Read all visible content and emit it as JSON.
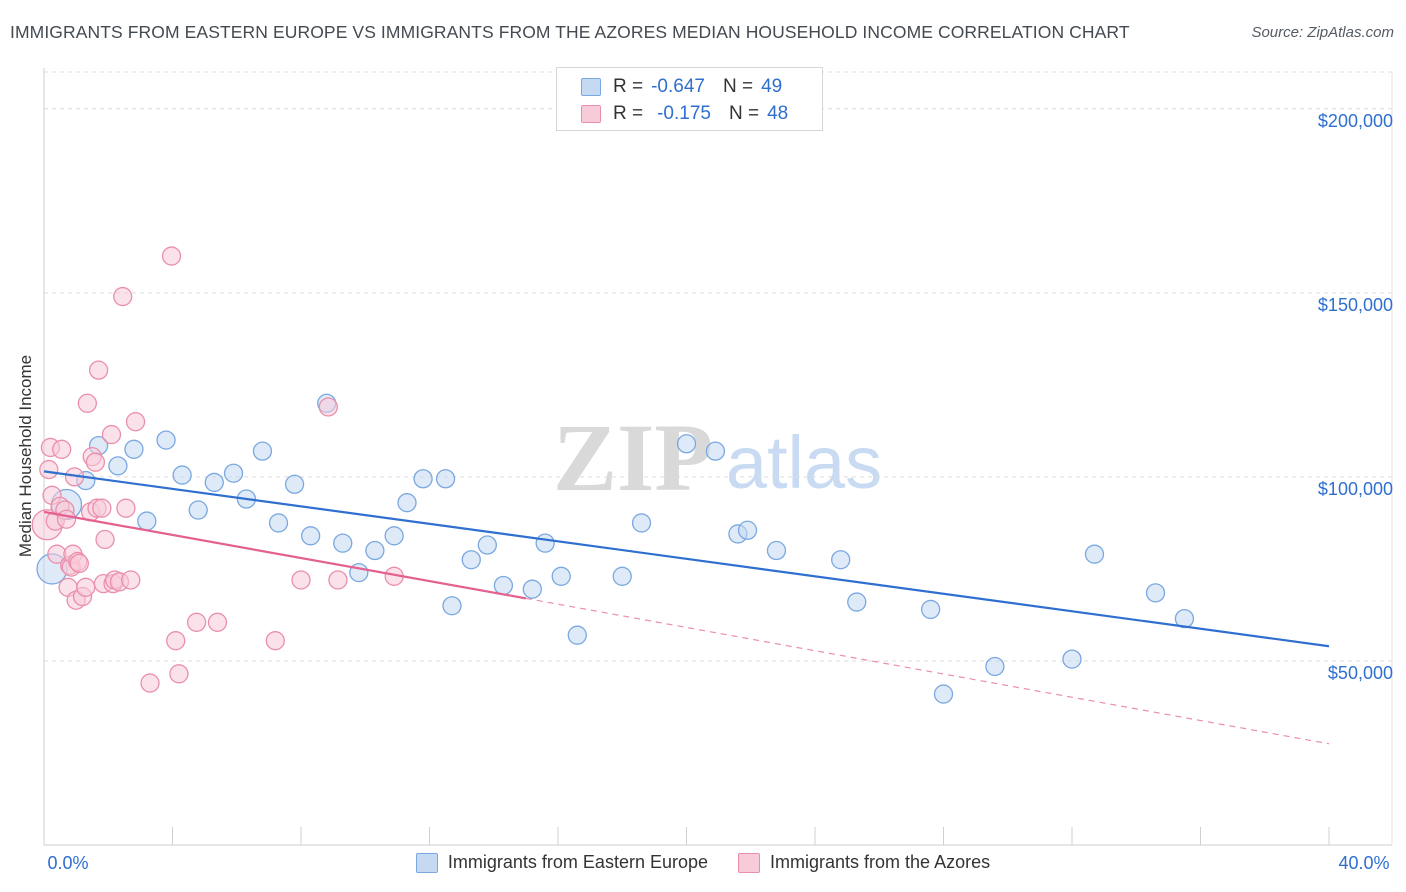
{
  "title": "IMMIGRANTS FROM EASTERN EUROPE VS IMMIGRANTS FROM THE AZORES MEDIAN HOUSEHOLD INCOME CORRELATION CHART",
  "source": "Source: ZipAtlas.com",
  "watermark": {
    "zip": "ZIP",
    "atlas": "atlas"
  },
  "stats": [
    {
      "r_label": "R =",
      "r_value": "-0.647",
      "n_label": "N =",
      "n_value": "49",
      "color": "#7aa8e0",
      "fill": "#c5d9f3"
    },
    {
      "r_label": "R =",
      "r_value": "-0.175",
      "n_label": "N =",
      "n_value": "48",
      "color": "#ea8fab",
      "fill": "#f8cbd9"
    }
  ],
  "legend": [
    {
      "label": "Immigrants from Eastern Europe",
      "color": "#7aa8e0",
      "fill": "#c5d9f3"
    },
    {
      "label": "Immigrants from the Azores",
      "color": "#ea8fab",
      "fill": "#f8cbd9"
    }
  ],
  "chart_data": {
    "type": "scatter",
    "title": "IMMIGRANTS FROM EASTERN EUROPE VS IMMIGRANTS FROM THE AZORES MEDIAN HOUSEHOLD INCOME CORRELATION CHART",
    "xlabel": "",
    "ylabel": "Median Household Income",
    "xlim": [
      0,
      40
    ],
    "ylim": [
      0,
      210000
    ],
    "x_tick_labels": {
      "min": "0.0%",
      "max": "40.0%"
    },
    "y_ticks": [
      {
        "value": 50000,
        "label": "$50,000"
      },
      {
        "value": 100000,
        "label": "$100,000"
      },
      {
        "value": 150000,
        "label": "$150,000"
      },
      {
        "value": 200000,
        "label": "$200,000"
      }
    ],
    "series": [
      {
        "name": "Immigrants from Eastern Europe",
        "color": "#2f6fd0",
        "point_stroke": "#7aa8e0",
        "point_fill": "#c5d9f3",
        "trend": {
          "x0": 0,
          "y0": 101500,
          "x1": 40,
          "y1": 54000,
          "dashed_to": null
        },
        "points": [
          [
            0.25,
            75000,
            "large"
          ],
          [
            0.7,
            92500,
            "large"
          ],
          [
            1.3,
            99000
          ],
          [
            1.7,
            108500
          ],
          [
            2.3,
            103000
          ],
          [
            2.8,
            107500
          ],
          [
            3.2,
            88000
          ],
          [
            3.8,
            110000
          ],
          [
            4.3,
            100500
          ],
          [
            4.8,
            91000
          ],
          [
            5.3,
            98500
          ],
          [
            5.9,
            101000
          ],
          [
            6.3,
            94000
          ],
          [
            6.8,
            107000
          ],
          [
            7.3,
            87500
          ],
          [
            7.8,
            98000
          ],
          [
            8.3,
            84000
          ],
          [
            8.8,
            120000
          ],
          [
            9.3,
            82000
          ],
          [
            9.8,
            74000
          ],
          [
            10.3,
            80000
          ],
          [
            10.9,
            84000
          ],
          [
            11.3,
            93000
          ],
          [
            11.8,
            99500
          ],
          [
            12.5,
            99500
          ],
          [
            12.7,
            65000
          ],
          [
            13.3,
            77500
          ],
          [
            13.8,
            81500
          ],
          [
            14.3,
            70500
          ],
          [
            15.2,
            69500
          ],
          [
            15.6,
            82000
          ],
          [
            16.1,
            73000
          ],
          [
            16.6,
            57000
          ],
          [
            18.0,
            73000
          ],
          [
            18.6,
            87500
          ],
          [
            20.0,
            109000
          ],
          [
            20.9,
            107000
          ],
          [
            21.6,
            84500
          ],
          [
            21.9,
            85500
          ],
          [
            22.8,
            80000
          ],
          [
            24.8,
            77500
          ],
          [
            25.3,
            66000
          ],
          [
            27.6,
            64000
          ],
          [
            28.0,
            41000
          ],
          [
            29.6,
            48500
          ],
          [
            32.0,
            50500
          ],
          [
            32.7,
            79000
          ],
          [
            34.6,
            68500
          ],
          [
            35.5,
            61500
          ]
        ]
      },
      {
        "name": "Immigrants from the Azores",
        "color": "#e4618f",
        "point_stroke": "#ea8fab",
        "point_fill": "#f8cbd9",
        "trend": {
          "x0": 0,
          "y0": 90500,
          "x1": 15,
          "y1": 67000,
          "dashed_to": {
            "x": 40,
            "y": 27500
          }
        },
        "points": [
          [
            0.1,
            87000,
            "large"
          ],
          [
            0.15,
            102000
          ],
          [
            0.2,
            108000
          ],
          [
            0.25,
            95000
          ],
          [
            0.35,
            88000
          ],
          [
            0.4,
            79000
          ],
          [
            0.5,
            92000
          ],
          [
            0.55,
            107500
          ],
          [
            0.65,
            91000
          ],
          [
            0.7,
            88500
          ],
          [
            0.75,
            70000
          ],
          [
            0.8,
            76000
          ],
          [
            0.85,
            75500
          ],
          [
            0.9,
            79000
          ],
          [
            0.95,
            100000
          ],
          [
            1.0,
            66500
          ],
          [
            1.05,
            77000
          ],
          [
            1.1,
            76500
          ],
          [
            1.2,
            67500
          ],
          [
            1.3,
            70000
          ],
          [
            1.35,
            120000
          ],
          [
            1.45,
            90500
          ],
          [
            1.5,
            105500
          ],
          [
            1.6,
            104000
          ],
          [
            1.65,
            91500
          ],
          [
            1.7,
            129000
          ],
          [
            1.8,
            91500
          ],
          [
            1.85,
            71000
          ],
          [
            1.9,
            83000
          ],
          [
            2.1,
            111500
          ],
          [
            2.15,
            71000
          ],
          [
            2.2,
            72000
          ],
          [
            2.35,
            71500
          ],
          [
            2.45,
            149000
          ],
          [
            2.55,
            91500
          ],
          [
            2.7,
            72000
          ],
          [
            2.85,
            115000
          ],
          [
            3.3,
            44000
          ],
          [
            3.97,
            160000
          ],
          [
            4.1,
            55500
          ],
          [
            4.2,
            46500
          ],
          [
            4.75,
            60500
          ],
          [
            5.4,
            60500
          ],
          [
            7.2,
            55500
          ],
          [
            8.0,
            72000
          ],
          [
            8.85,
            119000
          ],
          [
            9.15,
            72000
          ],
          [
            10.9,
            73000
          ]
        ]
      }
    ]
  }
}
